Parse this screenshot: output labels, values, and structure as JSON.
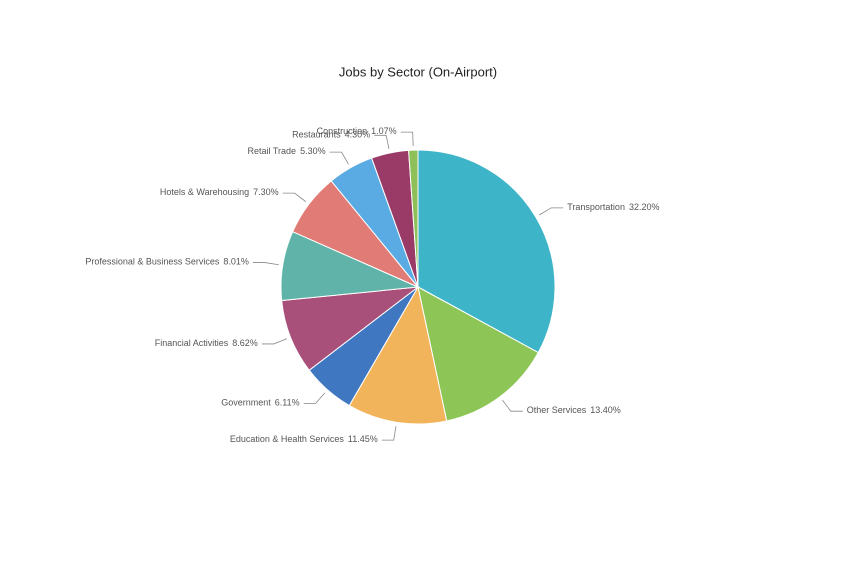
{
  "chart_data": {
    "type": "pie",
    "title": "Jobs by Sector (On-Airport)",
    "categories": [
      "Transportation",
      "Other Services",
      "Education & Health Services",
      "Government",
      "Financial Activities",
      "Professional & Business Services",
      "Hotels & Warehousing",
      "Retail Trade",
      "Restaurants",
      "Construction"
    ],
    "values": [
      32.2,
      13.4,
      11.45,
      6.11,
      8.62,
      8.01,
      7.3,
      5.3,
      4.3,
      1.07
    ],
    "value_labels": [
      "32.20%",
      "13.40%",
      "11.45%",
      "6.11%",
      "8.62%",
      "8.01%",
      "7.30%",
      "5.30%",
      "4.30%",
      "1.07%"
    ],
    "colors": [
      "#3eb4c9",
      "#8dc657",
      "#f2b45a",
      "#3f77c1",
      "#a84f7a",
      "#5fb3a8",
      "#e07b76",
      "#5aaae4",
      "#9a3a66",
      "#8fbf59"
    ]
  }
}
